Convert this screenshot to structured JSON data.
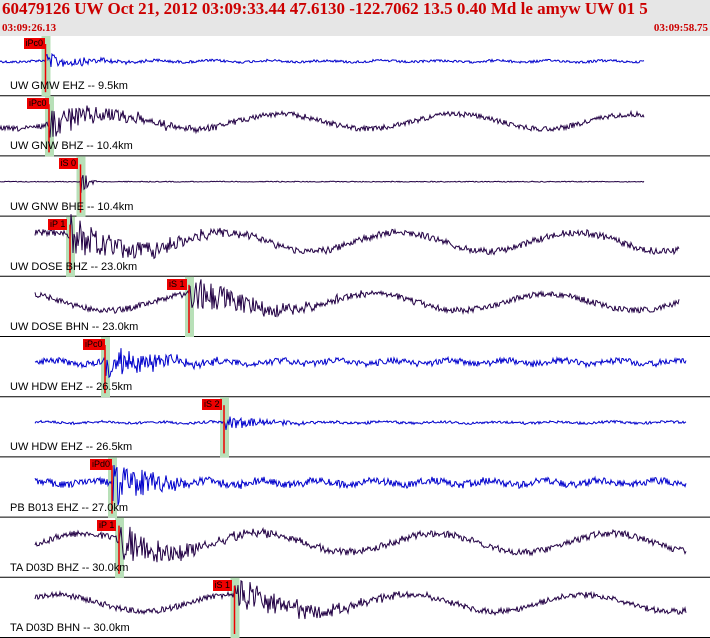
{
  "header": {
    "title": "60479126 UW Oct 21, 2012 03:09:33.44   47.6130 -122.7062 13.5 0.40 Md le amyw UW 01    5",
    "start_time": "03:09:26.13",
    "end_time": "03:09:58.75"
  },
  "colors": {
    "header_bg": "#e6e6e6",
    "header_text": "#cc0000",
    "trace_blue": "#0000cc",
    "trace_navy": "#220044",
    "pick_red": "#ee0000",
    "window_green": "#b8e0b8"
  },
  "traces": [
    {
      "label": "UW GMW EHZ -- 9.5km",
      "color": "blue",
      "picks": [
        {
          "text": "iPc0",
          "t": 0.065
        }
      ],
      "start": 0.0,
      "end": 0.92,
      "onset": 0.065,
      "amp": 0.12,
      "kind": "noise"
    },
    {
      "label": "UW GNW BHZ -- 10.4km",
      "color": "navy",
      "picks": [
        {
          "text": "iPc0",
          "t": 0.07
        }
      ],
      "start": 0.0,
      "end": 0.92,
      "onset": 0.07,
      "amp": 0.35,
      "kind": "long"
    },
    {
      "label": "UW GNW BHE -- 10.4km",
      "color": "navy",
      "picks": [
        {
          "text": "iS 0",
          "t": 0.115
        }
      ],
      "start": 0.0,
      "end": 0.92,
      "onset": 0.115,
      "amp": 0.05,
      "kind": "flat"
    },
    {
      "label": "UW DOSE BHZ -- 23.0km",
      "color": "navy",
      "picks": [
        {
          "text": "iP 1",
          "t": 0.1
        }
      ],
      "start": 0.05,
      "end": 0.97,
      "onset": 0.1,
      "amp": 0.45,
      "kind": "long"
    },
    {
      "label": "UW DOSE BHN -- 23.0km",
      "color": "navy",
      "picks": [
        {
          "text": "iS 1",
          "t": 0.27
        }
      ],
      "start": 0.05,
      "end": 0.97,
      "onset": 0.27,
      "amp": 0.4,
      "kind": "long"
    },
    {
      "label": "UW HDW EHZ -- 26.5km",
      "color": "blue",
      "picks": [
        {
          "text": "iPc0",
          "t": 0.15
        }
      ],
      "start": 0.05,
      "end": 0.98,
      "onset": 0.15,
      "amp": 0.3,
      "kind": "noise"
    },
    {
      "label": "UW HDW EHZ -- 26.5km",
      "color": "blue",
      "picks": [
        {
          "text": "iS 2",
          "t": 0.32
        }
      ],
      "start": 0.05,
      "end": 0.98,
      "onset": 0.32,
      "amp": 0.12,
      "kind": "noise"
    },
    {
      "label": "PB B013 EHZ -- 27.0km",
      "color": "blue",
      "picks": [
        {
          "text": "iPd0",
          "t": 0.16
        }
      ],
      "start": 0.05,
      "end": 0.98,
      "onset": 0.16,
      "amp": 0.35,
      "kind": "noise"
    },
    {
      "label": "TA D03D BHZ -- 30.0km",
      "color": "navy",
      "picks": [
        {
          "text": "iP 1",
          "t": 0.17
        }
      ],
      "start": 0.05,
      "end": 0.98,
      "onset": 0.17,
      "amp": 0.45,
      "kind": "long"
    },
    {
      "label": "TA D03D BHN -- 30.0km",
      "color": "navy",
      "picks": [
        {
          "text": "iS 1",
          "t": 0.335
        }
      ],
      "start": 0.05,
      "end": 0.98,
      "onset": 0.335,
      "amp": 0.4,
      "kind": "long"
    }
  ]
}
